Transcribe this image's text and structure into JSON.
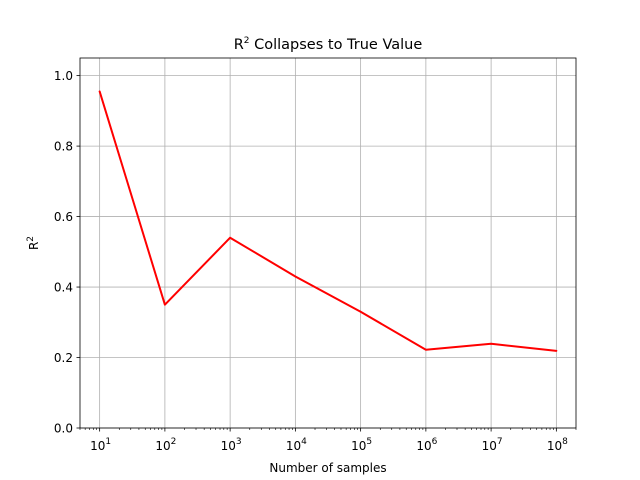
{
  "chart_data": {
    "type": "line",
    "title": {
      "base": "R",
      "sup": "2",
      "rest": " Collapses to True Value"
    },
    "xlabel": "Number of samples",
    "ylabel": {
      "base": "R",
      "sup": "2"
    },
    "x_scale": "log",
    "xlim": [
      5,
      200000000
    ],
    "ylim": [
      0.0,
      1.05
    ],
    "grid": true,
    "x_ticks": [
      {
        "value": 10,
        "base": "10",
        "exp": "1"
      },
      {
        "value": 100,
        "base": "10",
        "exp": "2"
      },
      {
        "value": 1000,
        "base": "10",
        "exp": "3"
      },
      {
        "value": 10000,
        "base": "10",
        "exp": "4"
      },
      {
        "value": 100000,
        "base": "10",
        "exp": "5"
      },
      {
        "value": 1000000,
        "base": "10",
        "exp": "6"
      },
      {
        "value": 10000000,
        "base": "10",
        "exp": "7"
      },
      {
        "value": 100000000,
        "base": "10",
        "exp": "8"
      }
    ],
    "y_ticks": [
      {
        "value": 0.0,
        "label": "0.0"
      },
      {
        "value": 0.2,
        "label": "0.2"
      },
      {
        "value": 0.4,
        "label": "0.4"
      },
      {
        "value": 0.6,
        "label": "0.6"
      },
      {
        "value": 0.8,
        "label": "0.8"
      },
      {
        "value": 1.0,
        "label": "1.0"
      }
    ],
    "series": [
      {
        "color": "#ff0000",
        "x": [
          10,
          100,
          1000,
          10000,
          100000,
          1000000,
          10000000,
          100000000
        ],
        "y": [
          0.955,
          0.35,
          0.54,
          0.43,
          0.33,
          0.222,
          0.239,
          0.219
        ]
      }
    ]
  }
}
